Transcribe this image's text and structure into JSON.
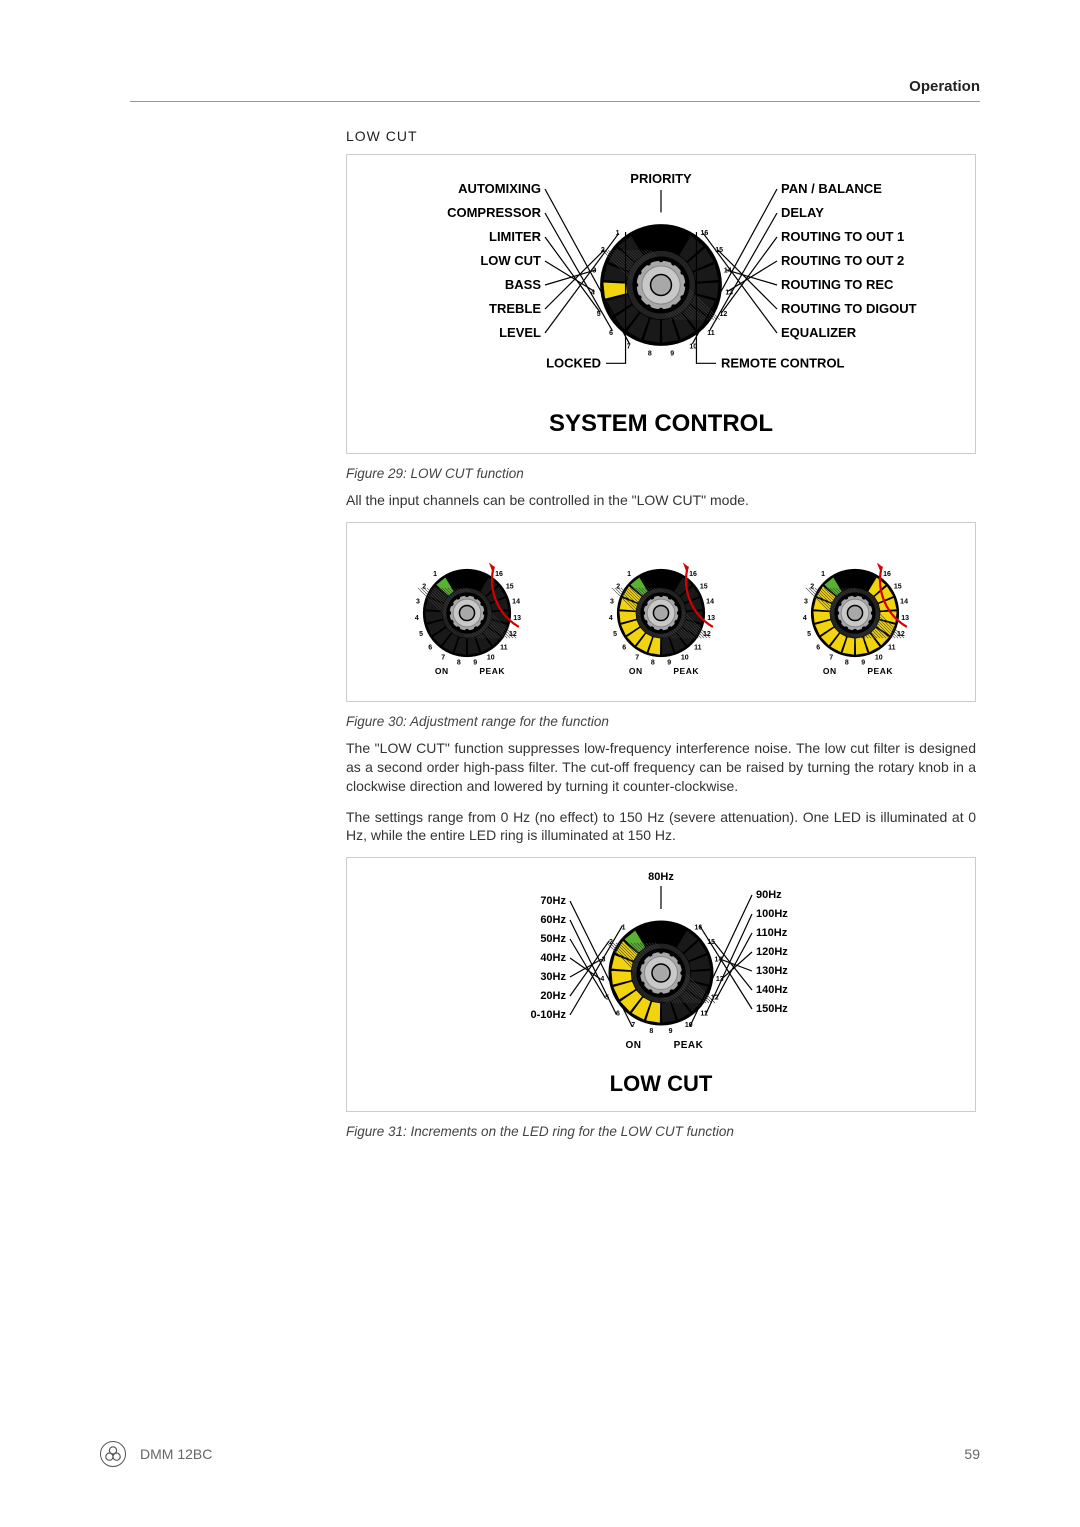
{
  "header": {
    "section": "Operation"
  },
  "section_title": "LOW CUT",
  "figure29": {
    "caption": "Figure 29: LOW CUT function",
    "main_title": "SYSTEM CONTROL",
    "top_label": "PRIORITY",
    "bottom_label": "LOCKED",
    "bottom_right_label": "REMOTE CONTROL",
    "left_labels": [
      "AUTOMIXING",
      "COMPRESSOR",
      "LIMITER",
      "LOW CUT",
      "BASS",
      "TREBLE",
      "LEVEL"
    ],
    "right_labels": [
      "PAN / BALANCE",
      "DELAY",
      "ROUTING TO OUT 1",
      "ROUTING TO OUT 2",
      "ROUTING TO REC",
      "ROUTING TO DIGOUT",
      "EQUALIZER"
    ],
    "n_segments": 16,
    "lit_index": 3,
    "seg_off": "#191919",
    "seg_yellow": "#f2d40e",
    "knob_gray": "#a8a8a8",
    "knob_dark": "#333333"
  },
  "para1": "All the input channels can be controlled in the \"LOW CUT\" mode.",
  "figure30": {
    "caption": "Figure 30: Adjustment range for the function",
    "dials": [
      {
        "lit_count": 1,
        "bottom_left": "ON",
        "bottom_right": "PEAK"
      },
      {
        "lit_count": 8,
        "bottom_left": "ON",
        "bottom_right": "PEAK"
      },
      {
        "lit_count": 16,
        "bottom_left": "ON",
        "bottom_right": "PEAK"
      }
    ],
    "scale_numbers": [
      "1",
      "2",
      "3",
      "4",
      "5",
      "6",
      "7",
      "8",
      "9",
      "10",
      "11",
      "12",
      "13",
      "14",
      "15",
      "16"
    ],
    "n_segments": 16,
    "seg_off": "#191919",
    "seg_green": "#58b430",
    "seg_yellow": "#f2d40e",
    "knob_gray": "#a8a8a8"
  },
  "para2": "The \"LOW CUT\" function suppresses low-frequency interference noise. The low cut filter is designed as a second order high-pass filter. The cut-off frequency can be raised by turning the rotary knob in a clockwise direction and lowered by turning it counter-clockwise.",
  "para3": "The settings range from 0 Hz (no effect) to 150 Hz (severe attenuation). One LED is illuminated at 0 Hz, while the entire LED ring is illuminated at 150 Hz.",
  "figure31": {
    "caption": "Figure 31: Increments on the LED ring for the LOW CUT function",
    "main_title": "LOW CUT",
    "bottom_left": "ON",
    "bottom_right": "PEAK",
    "left_hz": [
      "0-10Hz",
      "20Hz",
      "30Hz",
      "40Hz",
      "50Hz",
      "60Hz",
      "70Hz"
    ],
    "top_hz": "80Hz",
    "right_hz": [
      "90Hz",
      "100Hz",
      "110Hz",
      "120Hz",
      "130Hz",
      "140Hz",
      "150Hz"
    ],
    "n_segments": 16,
    "lit_count": 8,
    "seg_off": "#191919",
    "seg_green": "#58b430",
    "seg_yellow": "#f2d40e",
    "knob_gray": "#a8a8a8"
  },
  "footer": {
    "model": "DMM 12BC",
    "page": "59"
  }
}
